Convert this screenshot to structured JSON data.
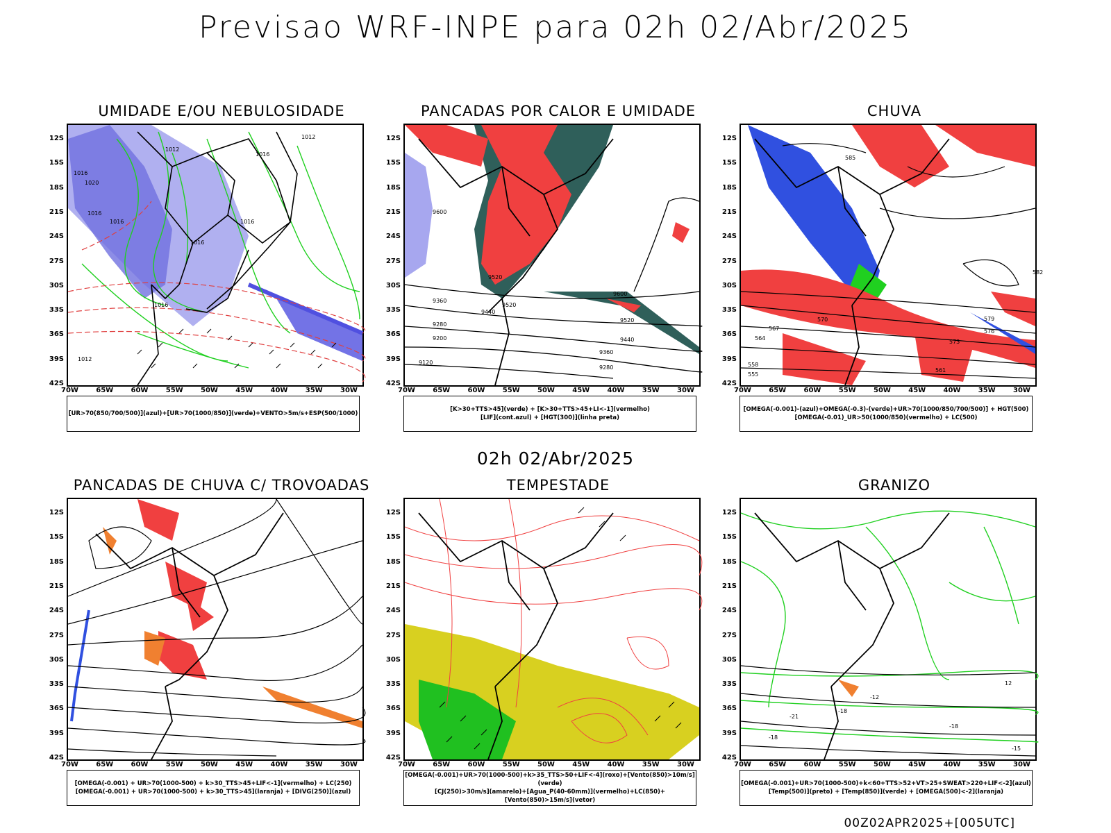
{
  "title": "Previsao WRF-INPE  para 02h 02/Abr/2025",
  "mid_title": "02h 02/Abr/2025",
  "footer": "00Z02APR2025+[005UTC]",
  "lat_labels": [
    "12S",
    "15S",
    "18S",
    "21S",
    "24S",
    "27S",
    "30S",
    "33S",
    "36S",
    "39S",
    "42S"
  ],
  "lon_labels": [
    "70W",
    "65W",
    "60W",
    "55W",
    "50W",
    "45W",
    "40W",
    "35W",
    "30W"
  ],
  "panels": [
    {
      "title": "UMIDADE E/OU NEBULOSIDADE",
      "legend": [
        "[UR>70(850/700/500)](azul)+[UR>70(1000/850)](verde)+VENTO>5m/s+ESP(500/1000)"
      ]
    },
    {
      "title": "PANCADAS POR CALOR E UMIDADE",
      "legend": [
        "[K>30+TTS>45](verde) + [K>30+TTS>45+LI<-1](vermelho)",
        "[LIF](cont.azul) + [HGT(300)](linha preta)"
      ]
    },
    {
      "title": "CHUVA",
      "legend": [
        "[OMEGA(-0.001)-(azul)+OMEGA(-0.3)-(verde)+UR>70(1000/850/700/500)] + HGT(500)",
        "[OMEGA(-0.01)_UR>50(1000/850)(vermelho) + LC(500)"
      ]
    },
    {
      "title": "PANCADAS DE CHUVA C/ TROVOADAS",
      "legend": [
        "[OMEGA(-0.001) + UR>70(1000-500) + k>30_TTS>45+LIF<-1](vermelho) + LC(250)",
        "[OMEGA(-0.001) + UR>70(1000-500) + k>30_TTS>45](laranja) + [DIVG(250)](azul)"
      ]
    },
    {
      "title": "TEMPESTADE",
      "legend": [
        "[OMEGA(-0.001)+UR>70(1000-500)+k>35_TTS>50+LIF<-4](roxo)+[Vento(850)>10m/s](verde)",
        "[CJ(250)>30m/s](amarelo)+[Agua_P(40-60mm)](vermelho)+LC(850)+[Vento(850)>15m/s](vetor)"
      ]
    },
    {
      "title": "GRANIZO",
      "legend": [
        "[OMEGA(-0.001)+UR>70(1000-500)+k<60+TTS>52+VT>25+SWEAT>220+LIF<-2](azul)",
        "[Temp(500)](preto) + [Temp(850)](verde) + [OMEGA(500)<-2](laranja)"
      ]
    }
  ],
  "contour_labels": {
    "p1": [
      "1016",
      "1012",
      "1016",
      "1020",
      "1016",
      "1016",
      "1016",
      "1012",
      "1016",
      "1016",
      "1012"
    ],
    "p2": [
      "9520",
      "9600",
      "9440",
      "9520",
      "9360",
      "9280",
      "9200",
      "9120",
      "9440",
      "9520",
      "9600",
      "9360",
      "9280"
    ],
    "p3": [
      "585",
      "582",
      "579",
      "576",
      "573",
      "570",
      "567",
      "564",
      "561",
      "558",
      "555"
    ],
    "p6": [
      "12",
      "-12",
      "-18",
      "-18",
      "-21",
      "-18",
      "-15"
    ]
  },
  "colors": {
    "blue": "#5050e0",
    "lightblue": "#b0b0f0",
    "green": "#20d020",
    "red": "#f04040",
    "orange": "#f08030",
    "teal": "#2f5f5a",
    "yellow": "#d8d020"
  }
}
